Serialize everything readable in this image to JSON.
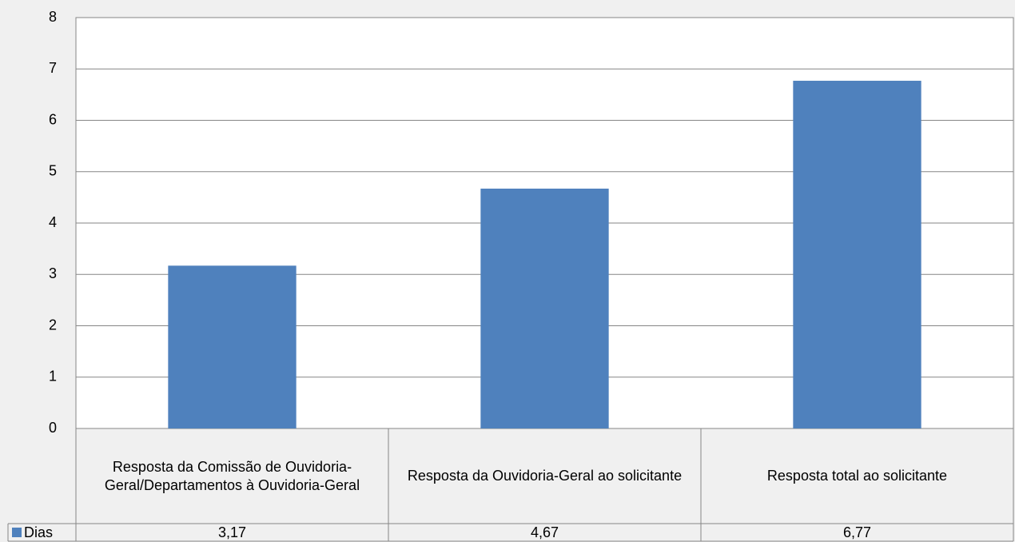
{
  "chart_data": {
    "type": "bar",
    "categories": [
      "Resposta da Comissão de Ouvidoria-Geral/Departamentos à Ouvidoria-Geral",
      "Resposta da Ouvidoria-Geral ao solicitante",
      "Resposta total ao solicitante"
    ],
    "series": [
      {
        "name": "Dias",
        "color": "#4f81bd",
        "values": [
          3.17,
          4.67,
          6.77
        ],
        "value_labels": [
          "3,17",
          "4,67",
          "6,77"
        ]
      }
    ],
    "ylim": [
      0,
      8
    ],
    "yticks": [
      0,
      1,
      2,
      3,
      4,
      5,
      6,
      7,
      8
    ],
    "grid": true,
    "data_table": true
  }
}
